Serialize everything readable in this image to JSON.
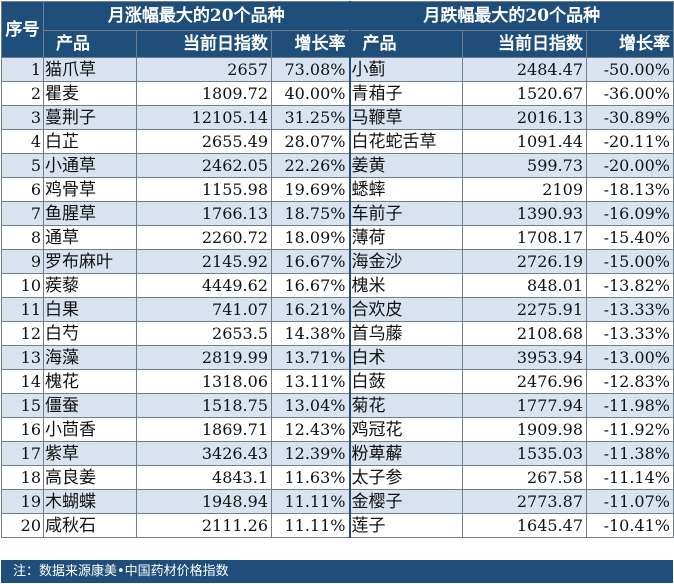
{
  "header": {
    "seq_label": "序号",
    "left_title": "月涨幅最大的20个品种",
    "right_title": "月跌幅最大的20个品种",
    "col_product": "产品",
    "col_index": "当前日指数",
    "col_growth": "增长率"
  },
  "rows": [
    {
      "seq": "1",
      "up_name": "猫爪草",
      "up_index": "2657",
      "up_rate": "73.08%",
      "down_name": "小蓟",
      "down_index": "2484.47",
      "down_rate": "-50.00%"
    },
    {
      "seq": "2",
      "up_name": "瞿麦",
      "up_index": "1809.72",
      "up_rate": "40.00%",
      "down_name": "青葙子",
      "down_index": "1520.67",
      "down_rate": "-36.00%"
    },
    {
      "seq": "3",
      "up_name": "蔓荆子",
      "up_index": "12105.14",
      "up_rate": "31.25%",
      "down_name": "马鞭草",
      "down_index": "2016.13",
      "down_rate": "-30.89%"
    },
    {
      "seq": "4",
      "up_name": "白芷",
      "up_index": "2655.49",
      "up_rate": "28.07%",
      "down_name": "白花蛇舌草",
      "down_index": "1091.44",
      "down_rate": "-20.11%"
    },
    {
      "seq": "5",
      "up_name": "小通草",
      "up_index": "2462.05",
      "up_rate": "22.26%",
      "down_name": "姜黄",
      "down_index": "599.73",
      "down_rate": "-20.00%"
    },
    {
      "seq": "6",
      "up_name": "鸡骨草",
      "up_index": "1155.98",
      "up_rate": "19.69%",
      "down_name": "蟋蟀",
      "down_index": "2109",
      "down_rate": "-18.13%"
    },
    {
      "seq": "7",
      "up_name": "鱼腥草",
      "up_index": "1766.13",
      "up_rate": "18.75%",
      "down_name": "车前子",
      "down_index": "1390.93",
      "down_rate": "-16.09%"
    },
    {
      "seq": "8",
      "up_name": "通草",
      "up_index": "2260.72",
      "up_rate": "18.09%",
      "down_name": "薄荷",
      "down_index": "1708.17",
      "down_rate": "-15.40%"
    },
    {
      "seq": "9",
      "up_name": "罗布麻叶",
      "up_index": "2145.92",
      "up_rate": "16.67%",
      "down_name": "海金沙",
      "down_index": "2726.19",
      "down_rate": "-15.00%"
    },
    {
      "seq": "10",
      "up_name": "蒺藜",
      "up_index": "4449.62",
      "up_rate": "16.67%",
      "down_name": "槐米",
      "down_index": "848.01",
      "down_rate": "-13.82%"
    },
    {
      "seq": "11",
      "up_name": "白果",
      "up_index": "741.07",
      "up_rate": "16.21%",
      "down_name": "合欢皮",
      "down_index": "2275.91",
      "down_rate": "-13.33%"
    },
    {
      "seq": "12",
      "up_name": "白芍",
      "up_index": "2653.5",
      "up_rate": "14.38%",
      "down_name": "首乌藤",
      "down_index": "2108.68",
      "down_rate": "-13.33%"
    },
    {
      "seq": "13",
      "up_name": "海藻",
      "up_index": "2819.99",
      "up_rate": "13.71%",
      "down_name": "白术",
      "down_index": "3953.94",
      "down_rate": "-13.00%"
    },
    {
      "seq": "14",
      "up_name": "槐花",
      "up_index": "1318.06",
      "up_rate": "13.11%",
      "down_name": "白蔹",
      "down_index": "2476.96",
      "down_rate": "-12.83%"
    },
    {
      "seq": "15",
      "up_name": "僵蚕",
      "up_index": "1518.75",
      "up_rate": "13.04%",
      "down_name": "菊花",
      "down_index": "1777.94",
      "down_rate": "-11.98%"
    },
    {
      "seq": "16",
      "up_name": "小茴香",
      "up_index": "1869.71",
      "up_rate": "12.43%",
      "down_name": "鸡冠花",
      "down_index": "1909.98",
      "down_rate": "-11.92%"
    },
    {
      "seq": "17",
      "up_name": "紫草",
      "up_index": "3426.43",
      "up_rate": "12.39%",
      "down_name": "粉萆薢",
      "down_index": "1535.03",
      "down_rate": "-11.38%"
    },
    {
      "seq": "18",
      "up_name": "高良姜",
      "up_index": "4843.1",
      "up_rate": "11.63%",
      "down_name": "太子参",
      "down_index": "267.58",
      "down_rate": "-11.14%"
    },
    {
      "seq": "19",
      "up_name": "木蝴蝶",
      "up_index": "1948.94",
      "up_rate": "11.11%",
      "down_name": "金樱子",
      "down_index": "2773.87",
      "down_rate": "-11.07%"
    },
    {
      "seq": "20",
      "up_name": "咸秋石",
      "up_index": "2111.26",
      "up_rate": "11.11%",
      "down_name": "莲子",
      "down_index": "1645.47",
      "down_rate": "-10.41%"
    }
  ],
  "footer": {
    "note": "注：数据来源康美•中国药材价格指数"
  },
  "colors": {
    "header_bg": "#1e4e79",
    "stripe_bg": "#d9e2ef",
    "row_bg": "#ffffff"
  }
}
